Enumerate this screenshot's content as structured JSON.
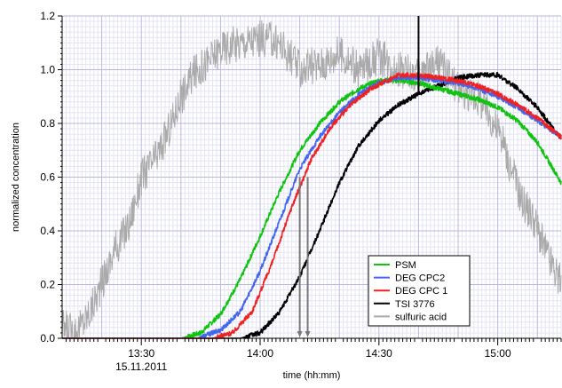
{
  "chart_data": {
    "type": "line",
    "xlabel": "time (hh:mm)",
    "ylabel": "normalized concentration",
    "xlim": [
      "13:10",
      "15:16"
    ],
    "ylim": [
      0.0,
      1.2
    ],
    "x_ticks": [
      {
        "label": "13:30",
        "sublabel": "15.11.2011",
        "t": "13:30"
      },
      {
        "label": "14:00",
        "sublabel": "",
        "t": "14:00"
      },
      {
        "label": "14:30",
        "sublabel": "",
        "t": "14:30"
      },
      {
        "label": "15:00",
        "sublabel": "",
        "t": "15:00"
      }
    ],
    "y_ticks": [
      "0.0",
      "0.2",
      "0.4",
      "0.6",
      "0.8",
      "1.0",
      "1.2"
    ],
    "grid": true,
    "legend_position": "bottom-right",
    "colors": {
      "PSM": "#11c311",
      "DEG CPC2": "#4466ee",
      "DEG CPC 1": "#ee2222",
      "TSI 3776": "#000000",
      "sulfuric acid": "#aaaaaa"
    },
    "series": [
      {
        "name": "PSM",
        "color": "#11c311",
        "x": [
          "13:10",
          "13:40",
          "13:45",
          "13:50",
          "13:55",
          "14:00",
          "14:05",
          "14:10",
          "14:15",
          "14:20",
          "14:25",
          "14:30",
          "14:35",
          "14:40",
          "14:45",
          "14:50",
          "14:55",
          "15:00",
          "15:05",
          "15:10",
          "15:16"
        ],
        "y": [
          0.0,
          0.0,
          0.02,
          0.09,
          0.22,
          0.38,
          0.55,
          0.7,
          0.8,
          0.88,
          0.93,
          0.96,
          0.96,
          0.95,
          0.93,
          0.91,
          0.89,
          0.86,
          0.81,
          0.73,
          0.58
        ]
      },
      {
        "name": "DEG CPC2",
        "color": "#4466ee",
        "x": [
          "13:10",
          "13:44",
          "13:50",
          "13:55",
          "14:00",
          "14:05",
          "14:10",
          "14:15",
          "14:20",
          "14:25",
          "14:30",
          "14:35",
          "14:40",
          "14:45",
          "14:50",
          "14:55",
          "15:00",
          "15:05",
          "15:10",
          "15:16"
        ],
        "y": [
          0.0,
          0.0,
          0.03,
          0.1,
          0.25,
          0.44,
          0.63,
          0.75,
          0.84,
          0.91,
          0.95,
          0.97,
          0.97,
          0.96,
          0.95,
          0.93,
          0.9,
          0.86,
          0.81,
          0.75
        ]
      },
      {
        "name": "DEG CPC 1",
        "color": "#ee2222",
        "x": [
          "13:10",
          "13:48",
          "13:53",
          "13:58",
          "14:03",
          "14:08",
          "14:13",
          "14:18",
          "14:23",
          "14:28",
          "14:35",
          "14:40",
          "14:45",
          "14:50",
          "14:55",
          "15:00",
          "15:05",
          "15:10",
          "15:16"
        ],
        "y": [
          0.0,
          0.0,
          0.02,
          0.1,
          0.28,
          0.49,
          0.67,
          0.79,
          0.87,
          0.93,
          0.98,
          0.98,
          0.97,
          0.96,
          0.94,
          0.91,
          0.87,
          0.82,
          0.75
        ]
      },
      {
        "name": "TSI 3776",
        "color": "#000000",
        "x": [
          "13:10",
          "13:55",
          "14:00",
          "14:05",
          "14:10",
          "14:15",
          "14:20",
          "14:25",
          "14:30",
          "14:35",
          "14:40",
          "14:45",
          "14:50",
          "14:55",
          "15:00",
          "15:05",
          "15:10",
          "15:16"
        ],
        "y": [
          0.0,
          0.0,
          0.02,
          0.1,
          0.23,
          0.4,
          0.58,
          0.72,
          0.81,
          0.87,
          0.91,
          0.94,
          0.97,
          0.98,
          0.98,
          0.93,
          0.86,
          0.74
        ]
      },
      {
        "name": "sulfuric acid",
        "color": "#aaaaaa",
        "x": [
          "13:10",
          "13:12",
          "13:14",
          "13:17",
          "13:20",
          "13:23",
          "13:27",
          "13:30",
          "13:34",
          "13:37",
          "13:40",
          "13:43",
          "13:46",
          "13:50",
          "13:55",
          "14:00",
          "14:05",
          "14:10",
          "14:15",
          "14:20",
          "14:25",
          "14:30",
          "14:35",
          "14:40",
          "14:45",
          "14:50",
          "14:55",
          "15:00",
          "15:03",
          "15:06",
          "15:09",
          "15:12",
          "15:16"
        ],
        "y": [
          0.04,
          0.03,
          0.03,
          0.1,
          0.2,
          0.32,
          0.43,
          0.6,
          0.68,
          0.78,
          0.9,
          0.98,
          1.02,
          1.08,
          1.1,
          1.12,
          1.1,
          1.0,
          1.02,
          1.06,
          1.0,
          1.05,
          1.0,
          0.97,
          1.03,
          0.93,
          0.9,
          0.78,
          0.65,
          0.52,
          0.45,
          0.33,
          0.2
        ]
      }
    ],
    "vertical_markers": [
      {
        "kind": "arrow-down",
        "x": "14:10",
        "color": "#777777"
      },
      {
        "kind": "arrow-down",
        "x": "14:12",
        "color": "#777777"
      },
      {
        "kind": "line",
        "x": "14:40",
        "color": "#000000"
      }
    ]
  }
}
